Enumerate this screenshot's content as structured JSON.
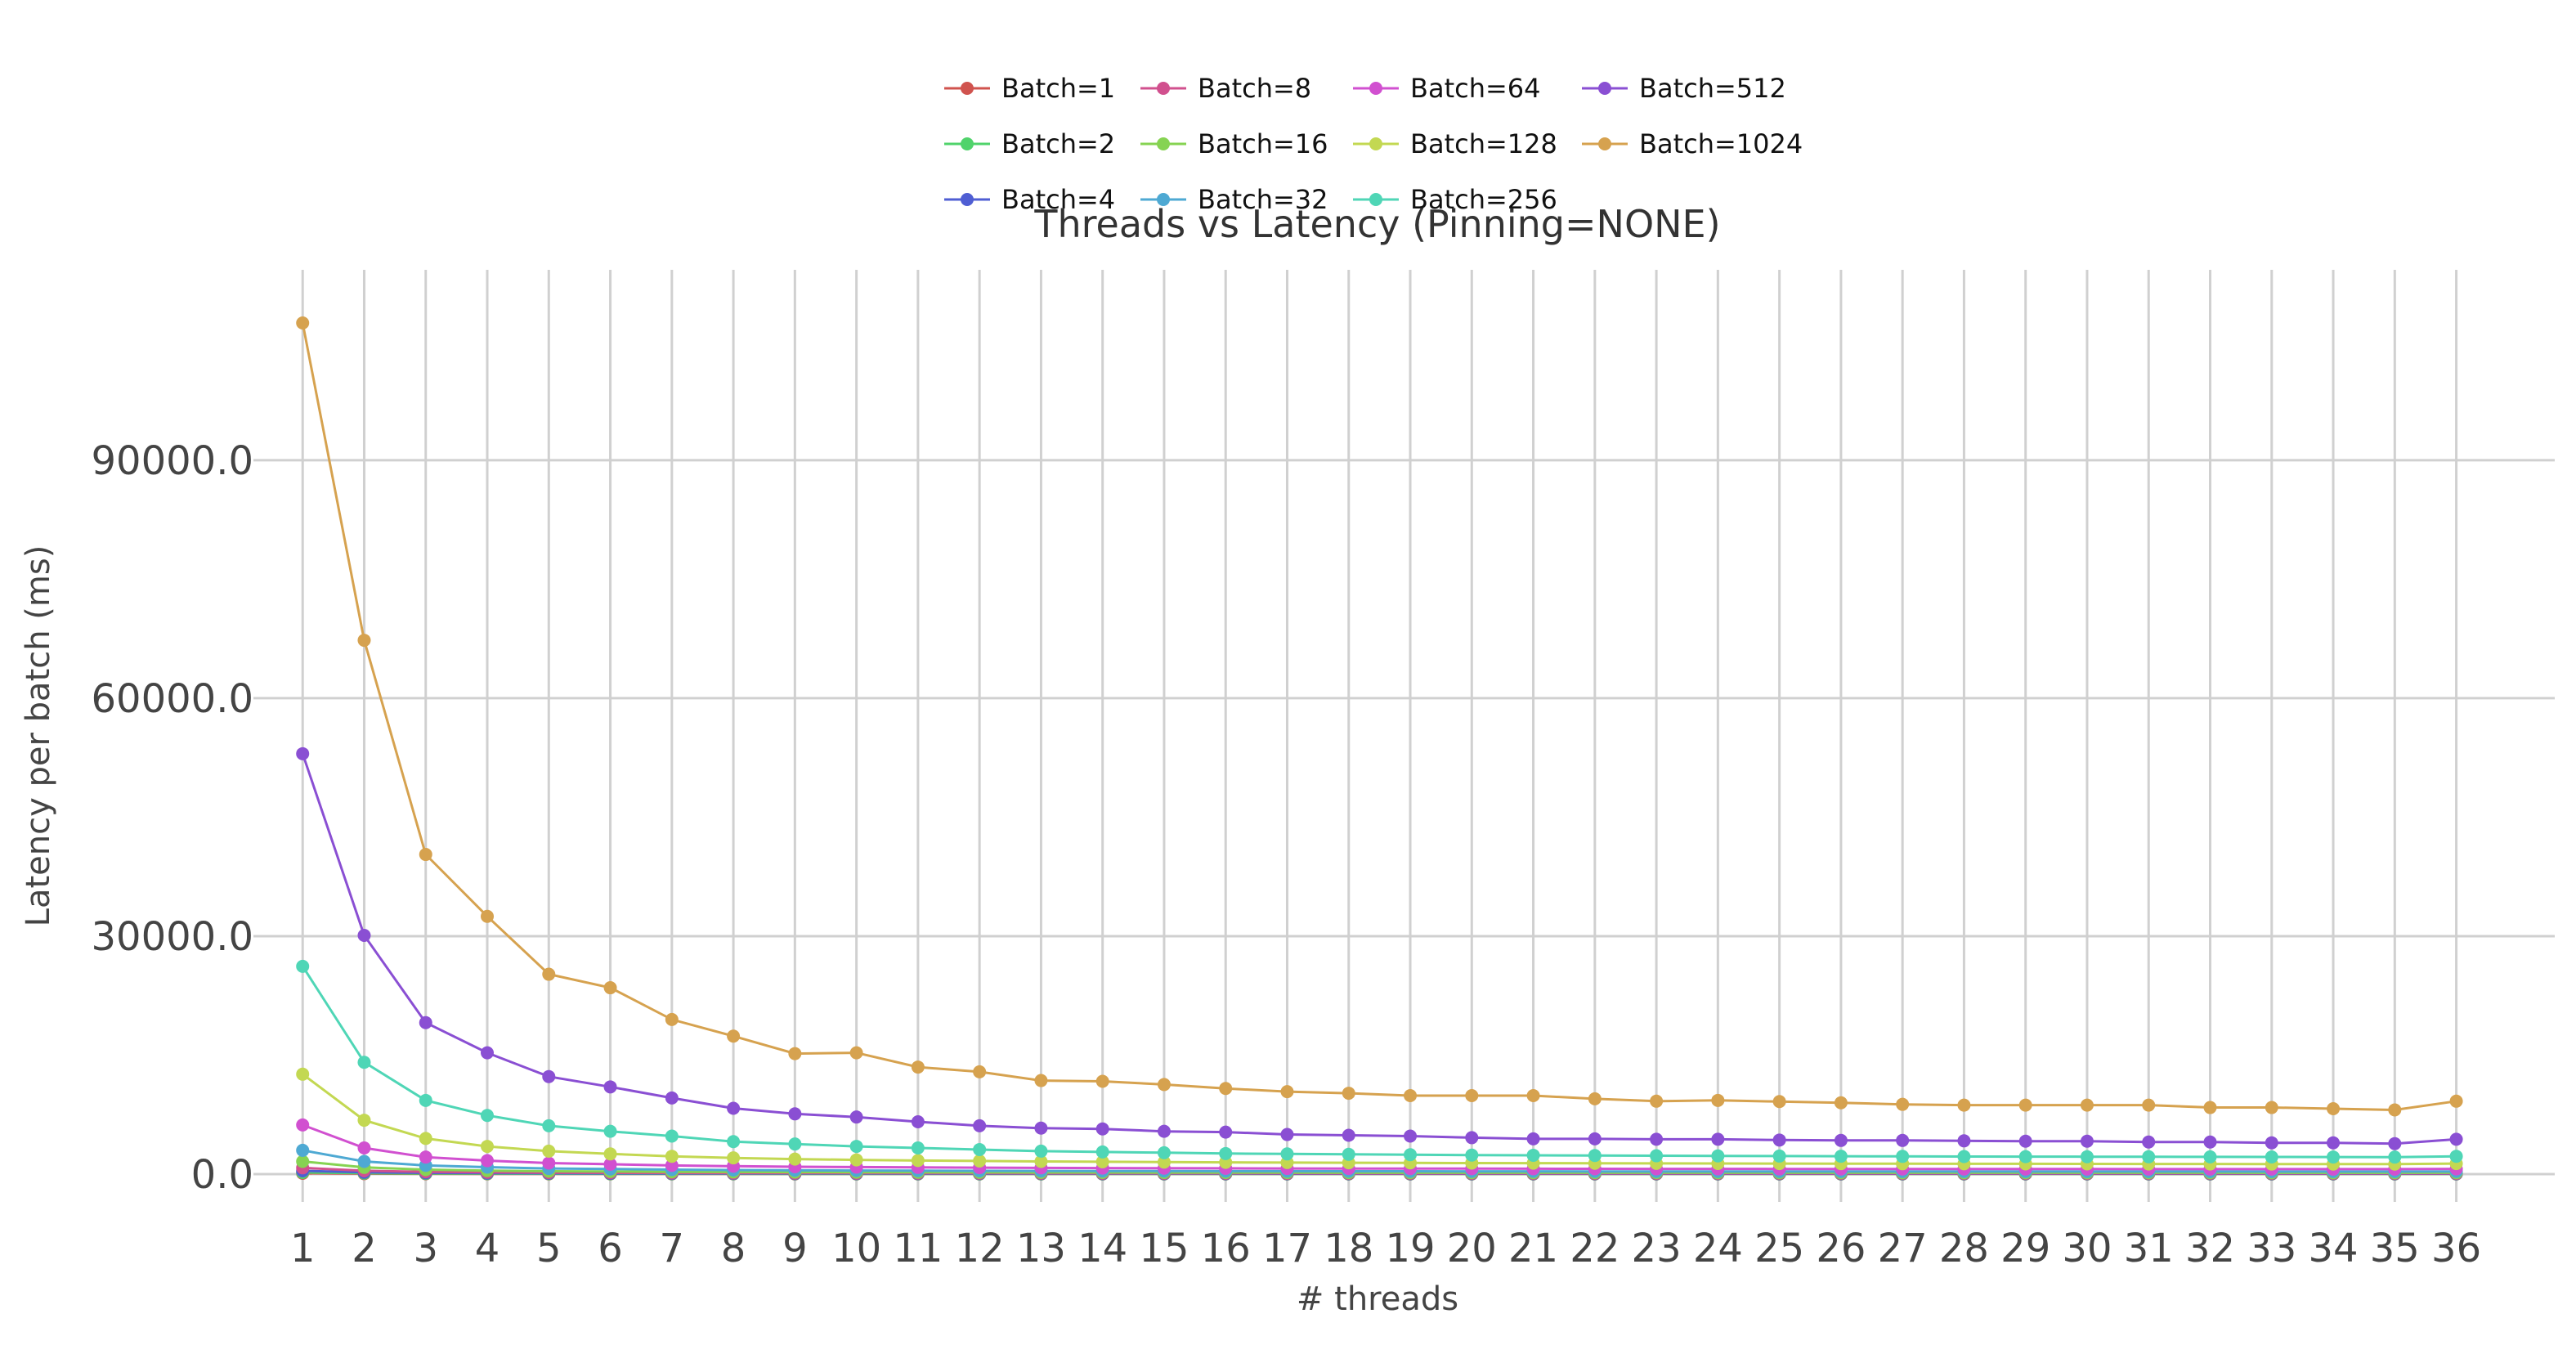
{
  "chart_data": {
    "type": "line",
    "title": "Threads vs Latency (Pinning=NONE)",
    "xlabel": "# threads",
    "ylabel": "Latency per batch (ms)",
    "x": [
      1,
      2,
      3,
      4,
      5,
      6,
      7,
      8,
      9,
      10,
      11,
      12,
      13,
      14,
      15,
      16,
      17,
      18,
      19,
      20,
      21,
      22,
      23,
      24,
      25,
      26,
      27,
      28,
      29,
      30,
      31,
      32,
      33,
      34,
      35,
      36
    ],
    "xlim": [
      0.2,
      37.6
    ],
    "ylim": [
      -3500,
      114000
    ],
    "yticks": [
      0,
      30000,
      60000,
      90000
    ],
    "ytick_labels": [
      "0.0",
      "30000.0",
      "60000.0",
      "90000.0"
    ],
    "grid": true,
    "legend_position": "top-center",
    "series": [
      {
        "name": "Batch=1",
        "color": "#d0534e",
        "values": [
          110,
          65,
          45,
          38,
          32,
          30,
          28,
          27,
          26,
          25,
          25,
          24,
          24,
          23,
          23,
          23,
          23,
          22,
          22,
          22,
          22,
          22,
          22,
          21,
          21,
          21,
          21,
          21,
          21,
          21,
          21,
          21,
          21,
          21,
          21,
          22
        ]
      },
      {
        "name": "Batch=2",
        "color": "#50d36b",
        "values": [
          210,
          120,
          80,
          65,
          55,
          50,
          45,
          42,
          40,
          38,
          37,
          36,
          35,
          34,
          33,
          33,
          32,
          32,
          31,
          31,
          31,
          30,
          30,
          30,
          30,
          30,
          29,
          29,
          29,
          29,
          29,
          29,
          29,
          29,
          29,
          30
        ]
      },
      {
        "name": "Batch=4",
        "color": "#4f5ed3",
        "values": [
          420,
          230,
          160,
          125,
          105,
          95,
          85,
          80,
          75,
          72,
          70,
          68,
          66,
          64,
          63,
          62,
          61,
          60,
          59,
          59,
          58,
          58,
          57,
          57,
          57,
          56,
          56,
          56,
          56,
          55,
          55,
          55,
          55,
          55,
          55,
          57
        ]
      },
      {
        "name": "Batch=8",
        "color": "#d1508e",
        "values": [
          800,
          430,
          290,
          230,
          190,
          170,
          150,
          140,
          130,
          125,
          120,
          115,
          112,
          110,
          108,
          105,
          103,
          102,
          100,
          99,
          98,
          97,
          96,
          96,
          95,
          95,
          94,
          94,
          93,
          93,
          93,
          92,
          92,
          92,
          92,
          95
        ]
      },
      {
        "name": "Batch=16",
        "color": "#86d352",
        "values": [
          1600,
          850,
          570,
          450,
          370,
          330,
          290,
          270,
          250,
          240,
          230,
          220,
          215,
          210,
          205,
          200,
          196,
          193,
          190,
          188,
          186,
          184,
          182,
          181,
          180,
          179,
          178,
          177,
          176,
          176,
          175,
          175,
          174,
          174,
          174,
          180
        ]
      },
      {
        "name": "Batch=32",
        "color": "#4ea9d3",
        "values": [
          3000,
          1600,
          1100,
          880,
          720,
          650,
          570,
          520,
          480,
          460,
          440,
          420,
          410,
          400,
          390,
          380,
          372,
          366,
          360,
          356,
          352,
          348,
          345,
          342,
          340,
          338,
          336,
          334,
          333,
          332,
          331,
          330,
          329,
          328,
          328,
          340
        ]
      },
      {
        "name": "Batch=64",
        "color": "#d150d0",
        "values": [
          6200,
          3300,
          2150,
          1700,
          1400,
          1250,
          1100,
          1000,
          930,
          890,
          850,
          820,
          790,
          770,
          750,
          735,
          720,
          710,
          700,
          690,
          682,
          675,
          668,
          662,
          658,
          654,
          650,
          646,
          643,
          640,
          638,
          636,
          634,
          632,
          630,
          660
        ]
      },
      {
        "name": "Batch=128",
        "color": "#c3d852",
        "values": [
          12600,
          6800,
          4500,
          3500,
          2900,
          2550,
          2250,
          2050,
          1900,
          1800,
          1720,
          1660,
          1600,
          1560,
          1520,
          1490,
          1460,
          1440,
          1420,
          1400,
          1385,
          1370,
          1355,
          1345,
          1335,
          1325,
          1315,
          1305,
          1298,
          1290,
          1285,
          1280,
          1275,
          1270,
          1265,
          1330
        ]
      },
      {
        "name": "Batch=256",
        "color": "#4fd6b6",
        "values": [
          26200,
          14100,
          9300,
          7400,
          6100,
          5400,
          4800,
          4100,
          3800,
          3500,
          3300,
          3100,
          2900,
          2800,
          2700,
          2600,
          2550,
          2500,
          2450,
          2400,
          2380,
          2350,
          2320,
          2300,
          2280,
          2260,
          2240,
          2220,
          2210,
          2200,
          2190,
          2180,
          2170,
          2160,
          2150,
          2250
        ]
      },
      {
        "name": "Batch=512",
        "color": "#8a4fd3",
        "values": [
          53000,
          30100,
          19100,
          15300,
          12300,
          11000,
          9600,
          8300,
          7600,
          7200,
          6600,
          6100,
          5800,
          5700,
          5400,
          5300,
          5000,
          4900,
          4800,
          4600,
          4450,
          4450,
          4400,
          4400,
          4300,
          4250,
          4250,
          4200,
          4150,
          4150,
          4050,
          4050,
          3950,
          3950,
          3850,
          4400
        ]
      },
      {
        "name": "Batch=1024",
        "color": "#d6a24f",
        "values": [
          107300,
          67300,
          40300,
          32500,
          25200,
          23500,
          19500,
          17400,
          15200,
          15300,
          13500,
          12900,
          11800,
          11700,
          11300,
          10800,
          10400,
          10200,
          9900,
          9900,
          9900,
          9500,
          9200,
          9300,
          9150,
          9000,
          8800,
          8700,
          8700,
          8700,
          8700,
          8400,
          8400,
          8250,
          8100,
          9200
        ]
      }
    ]
  }
}
